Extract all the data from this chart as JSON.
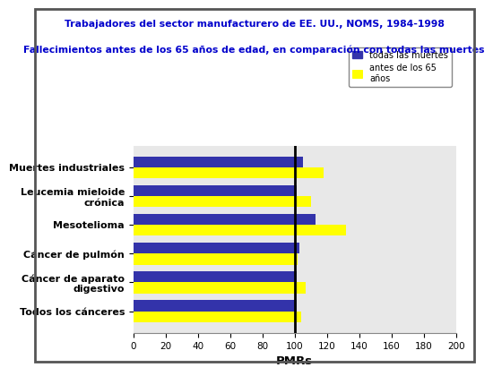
{
  "title_line1": "Trabajadores del sector manufacturero de EE. UU., NOMS, 1984-1998",
  "title_line2": "Fallecimientos antes de los 65 años de edad, en comparación con todas las muertes",
  "categories": [
    "Todos los cánceres",
    "Cáncer de aparato\ndigestivo",
    "Cáncer de pulmón",
    "Mesotelioma",
    "Leucemia mieloide\ncrónica",
    "Muertes industriales"
  ],
  "blue_values": [
    101,
    101,
    103,
    113,
    101,
    105
  ],
  "yellow_values": [
    104,
    107,
    102,
    132,
    110,
    118
  ],
  "blue_color": "#3333AA",
  "yellow_color": "#FFFF00",
  "vline_x": 100,
  "xlim": [
    0,
    200
  ],
  "xticks": [
    0,
    20,
    40,
    60,
    80,
    100,
    120,
    140,
    160,
    180,
    200
  ],
  "xlabel": "PMRs",
  "legend_blue_label": "todas las muertes",
  "legend_yellow_label": "antes de los 65\naños",
  "chart_bg_color": "#E8E8E8",
  "fig_bg_color": "#FFFFFF",
  "title_color": "#0000CC",
  "title_fontsize": 7.8,
  "ylabel_fontsize": 8.0,
  "xlabel_fontsize": 9.5,
  "bar_height": 0.38,
  "bar_gap": 0.42
}
